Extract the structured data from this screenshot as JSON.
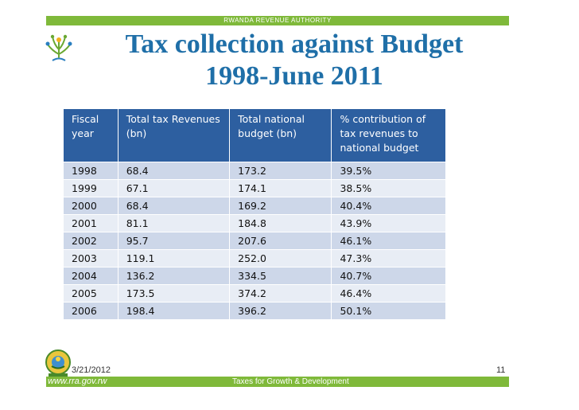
{
  "header": {
    "organization": "RWANDA REVENUE AUTHORITY"
  },
  "title": {
    "line1": "Tax collection against Budget",
    "line2": "1998-June 2011"
  },
  "table": {
    "columns": [
      {
        "line1": "Fiscal",
        "line2": "year",
        "line3": ""
      },
      {
        "line1": "Total tax Revenues",
        "line2": "(bn)",
        "line3": ""
      },
      {
        "line1": "Total national",
        "line2": "budget (bn)",
        "line3": ""
      },
      {
        "line1": "% contribution of",
        "line2": "tax revenues to",
        "line3": "national budget"
      }
    ],
    "rows": [
      [
        "1998",
        "68.4",
        "173.2",
        "39.5%"
      ],
      [
        "1999",
        "67.1",
        "174.1",
        "38.5%"
      ],
      [
        "2000",
        "68.4",
        "169.2",
        "40.4%"
      ],
      [
        "2001",
        "81.1",
        "184.8",
        "43.9%"
      ],
      [
        "2002",
        " 95.7",
        "207.6",
        "46.1%"
      ],
      [
        "2003",
        "119.1",
        "252.0",
        "47.3%"
      ],
      [
        "2004",
        "136.2",
        "334.5",
        "40.7%"
      ],
      [
        "2005",
        "173.5",
        "374.2",
        "46.4%"
      ],
      [
        "2006",
        "198.4",
        "396.2",
        "50.1%"
      ]
    ]
  },
  "footer": {
    "date": "3/21/2012",
    "page_number": "11",
    "url": "www.rra.gov.rw",
    "tagline": "Taxes for Growth & Development"
  },
  "logos": {
    "top": "rra-logo",
    "bottom": "rwanda-coat-of-arms"
  },
  "colors": {
    "accent_green": "#7fb93a",
    "title_blue": "#1f6fa8",
    "header_blue": "#2d5fa0",
    "row_dark": "#cdd7e9",
    "row_light": "#e8edf5"
  }
}
